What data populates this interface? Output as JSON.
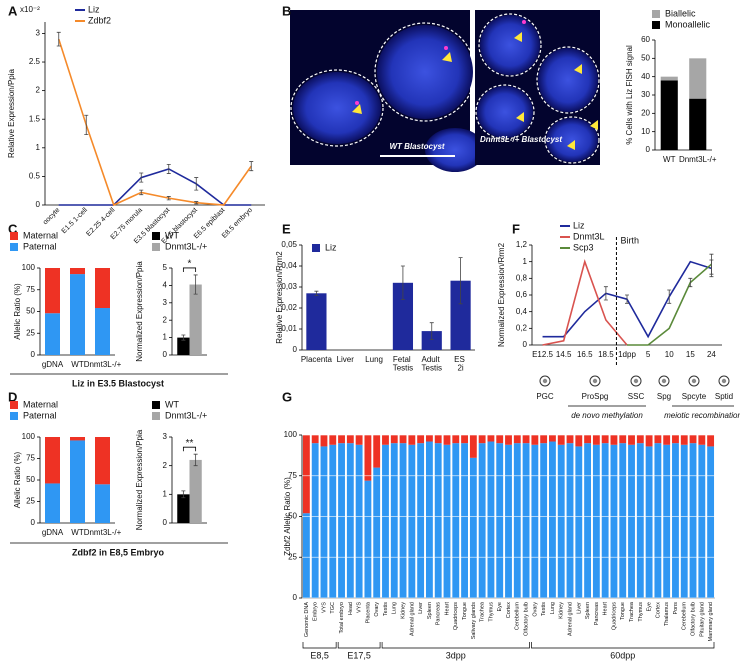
{
  "chart_data": [
    {
      "panel": "A",
      "type": "line",
      "y_label": "Relative Expression/Ppia",
      "y_multiplier": "x10⁻²",
      "categories": [
        "oocyte",
        "E1.5 1-cell",
        "E2.25 4-cell",
        "E2.75 morula",
        "E3.5 blastocyst",
        "E4.5 blastocyst",
        "E6.5 epiblast",
        "E8.5 embryo"
      ],
      "series": [
        {
          "name": "Liz",
          "color": "#1f2a9c",
          "values": [
            0,
            0,
            0,
            0.0048,
            0.0063,
            0.0037,
            0,
            0
          ],
          "errors": [
            null,
            null,
            null,
            0.0008,
            0.0008,
            0.0011,
            null,
            null
          ]
        },
        {
          "name": "Zdbf2",
          "color": "#f58a2a",
          "values": [
            0.029,
            0.014,
            0,
            0.0022,
            0.0012,
            0.0004,
            0,
            0.0068
          ],
          "errors": [
            0.0012,
            0.0017,
            null,
            0.0004,
            0.0003,
            0.0002,
            null,
            0.0008
          ]
        }
      ],
      "ylim": [
        0,
        0.032
      ],
      "yticks": [
        0,
        {
          "value": 0.005,
          "label": "0.5"
        },
        {
          "value": 0.01,
          "label": "1"
        },
        {
          "value": 0.015,
          "label": "1.5"
        },
        {
          "value": 0.02,
          "label": "2"
        },
        {
          "value": 0.025,
          "label": "2.5"
        },
        {
          "value": 0.03,
          "label": "3"
        }
      ]
    },
    {
      "panel": "B",
      "type": "stacked_bar",
      "image_captions": [
        "WT Blastocyst",
        "Dnmt3L-/+ Blastocyst"
      ],
      "y_label": "% Cells with Liz FISH signal",
      "categories": [
        "WT",
        "Dnmt3L-/+"
      ],
      "series": [
        {
          "name": "Biallelic",
          "color": "#a6a6a6",
          "values": [
            2,
            22
          ]
        },
        {
          "name": "Monoallelic",
          "color": "#000000",
          "values": [
            38,
            28
          ]
        }
      ],
      "ylim": [
        0,
        60
      ],
      "yticks": [
        0,
        10,
        20,
        30,
        40,
        50,
        60
      ]
    },
    {
      "panel": "C",
      "type": "stacked_bar",
      "y_label": "Allelic Ratio (%)",
      "caption": "Liz in E3.5 Blastocyst",
      "categories": [
        "gDNA",
        "WT",
        "Dnmt3L-/+"
      ],
      "series": [
        {
          "name": "Maternal",
          "color": "#ee3224",
          "values": [
            52,
            7,
            46
          ]
        },
        {
          "name": "Paternal",
          "color": "#2f97f3",
          "values": [
            48,
            93,
            54
          ]
        }
      ],
      "ylim": [
        0,
        100
      ],
      "yticks": [
        0,
        25,
        50,
        75,
        100
      ]
    },
    {
      "type": "bar",
      "y_label": "Normalized Expression/Ppia",
      "annotation": "*",
      "series": [
        {
          "name": "WT",
          "color": "#000000",
          "values": [
            1
          ],
          "errors": [
            0.15
          ]
        },
        {
          "name": "Dnmt3L-/+",
          "color": "#a6a6a6",
          "values": [
            4.05
          ],
          "errors": [
            0.55
          ]
        }
      ],
      "ylim": [
        0,
        5
      ],
      "yticks": [
        0,
        1,
        2,
        3,
        4,
        5
      ]
    },
    {
      "panel": "D",
      "type": "stacked_bar",
      "y_label": "Allelic Ratio (%)",
      "caption": "Zdbf2 in E8,5 Embryo",
      "categories": [
        "gDNA",
        "WT",
        "Dnmt3L-/+"
      ],
      "series": [
        {
          "name": "Maternal",
          "color": "#ee3224",
          "values": [
            54,
            4,
            55
          ]
        },
        {
          "name": "Paternal",
          "color": "#2f97f3",
          "values": [
            46,
            96,
            45
          ]
        }
      ],
      "ylim": [
        0,
        100
      ],
      "yticks": [
        0,
        25,
        50,
        75,
        100
      ]
    },
    {
      "type": "bar",
      "y_label": "Normalized Expression/Ppia",
      "annotation": "**",
      "series": [
        {
          "name": "WT",
          "color": "#000000",
          "values": [
            1
          ],
          "errors": [
            0.12
          ]
        },
        {
          "name": "Dnmt3L-/+",
          "color": "#a6a6a6",
          "values": [
            2.2
          ],
          "errors": [
            0.2
          ]
        }
      ],
      "ylim": [
        0,
        3
      ],
      "yticks": [
        0,
        1,
        2,
        3
      ]
    },
    {
      "panel": "E",
      "type": "bar",
      "y_label": "Relative Expression/Rrm2",
      "categories": [
        "Placenta",
        "Liver",
        "Lung",
        "Fetal Testis",
        "Adult Testis",
        "ES 2i"
      ],
      "series": [
        {
          "name": "Liz",
          "color": "#1f2a9c",
          "values": [
            0.027,
            0,
            0,
            0.032,
            0.009,
            0.033
          ],
          "errors": [
            0.001,
            null,
            null,
            0.008,
            0.004,
            0.011
          ]
        }
      ],
      "ylim": [
        0,
        0.05
      ],
      "yticks": [
        0,
        {
          "value": 0.01,
          "label": "0,01"
        },
        {
          "value": 0.02,
          "label": "0,02"
        },
        {
          "value": 0.03,
          "label": "0,03"
        },
        {
          "value": 0.04,
          "label": "0,04"
        },
        {
          "value": 0.05,
          "label": "0,05"
        }
      ]
    },
    {
      "panel": "F",
      "type": "line",
      "y_label": "Normalized Expression/Rrm2",
      "annotation": "Birth",
      "categories": [
        "E12.5",
        "14.5",
        "16.5",
        "18.5",
        "1dpp",
        "5",
        "10",
        "15",
        "24"
      ],
      "series": [
        {
          "name": "Liz",
          "color": "#1f2a9c",
          "values": [
            0.1,
            0.1,
            0.4,
            0.62,
            0.55,
            0.1,
            0.58,
            1.0,
            0.92
          ],
          "errors": [
            null,
            null,
            null,
            0.08,
            0.05,
            null,
            0.08,
            null,
            0.1
          ]
        },
        {
          "name": "Dnmt3L",
          "color": "#d9534f",
          "values": [
            0,
            0.05,
            1.0,
            0.3,
            0,
            null,
            null,
            null,
            null
          ]
        },
        {
          "name": "Scp3",
          "color": "#5a8a3a",
          "values": [
            null,
            null,
            null,
            null,
            0,
            0,
            0.2,
            0.75,
            0.97
          ],
          "errors": [
            null,
            null,
            null,
            null,
            null,
            null,
            null,
            0.05,
            0.12
          ]
        }
      ],
      "ylim": [
        0,
        1.2
      ],
      "yticks": [
        0,
        {
          "value": 0.2,
          "label": "0,2"
        },
        {
          "value": 0.4,
          "label": "0,4"
        },
        {
          "value": 0.6,
          "label": "0,6"
        },
        {
          "value": 0.8,
          "label": "0,8"
        },
        1,
        {
          "value": 1.2,
          "label": "1,2"
        }
      ],
      "stages": [
        "PGC",
        "ProSpg",
        "SSC",
        "Spg",
        "Spcyte",
        "Sptid"
      ],
      "stage_notes": [
        "de novo methylation",
        "meiotic recombination"
      ]
    },
    {
      "panel": "G",
      "type": "stacked_bar",
      "y_label": "Zdbf2 Allelic Ratio (%)",
      "grid": true,
      "groups": [
        {
          "label": "E8,5",
          "categories": [
            "Genomic DNA",
            "Embryo",
            "VYS",
            "TGC"
          ]
        },
        {
          "label": "E17,5",
          "categories": [
            "Total embryo",
            "Head",
            "VYS",
            "Placenta",
            "Ovary"
          ]
        },
        {
          "label": "3dpp",
          "categories": [
            "Testis",
            "Lung",
            "Kidney",
            "Adrenal gland",
            "Liver",
            "Spleen",
            "Pancreas",
            "Heart",
            "Quadriceps",
            "Tongue",
            "Salivary glands",
            "Trachea",
            "Thymus",
            "Eye",
            "Cortex",
            "Cerebellum",
            "Olfactory bulb"
          ]
        },
        {
          "label": "60dpp",
          "categories": [
            "Ovary",
            "Testis",
            "Lung",
            "Kidney",
            "Adrenal gland",
            "Liver",
            "Spleen",
            "Pancreas",
            "Heart",
            "Quadriceps",
            "Tongue",
            "Trachea",
            "Thymus",
            "Eye",
            "Cortex",
            "Thalamus",
            "Pons",
            "Cerebellum",
            "Olfactory bulb",
            "Pituitary gland",
            "Mammary gland"
          ]
        }
      ],
      "series": [
        {
          "color": "#ee3224",
          "values": [
            48,
            5,
            7,
            6,
            5,
            5,
            6,
            28,
            20,
            6,
            5,
            5,
            6,
            5,
            4,
            5,
            6,
            5,
            5,
            14,
            5,
            4,
            5,
            6,
            5,
            5,
            6,
            5,
            4,
            6,
            5,
            7,
            5,
            6,
            5,
            6,
            5,
            6,
            5,
            7,
            5,
            6,
            5,
            6,
            5,
            6,
            7
          ]
        },
        {
          "color": "#2f97f3",
          "values": [
            52,
            95,
            93,
            94,
            95,
            95,
            94,
            72,
            80,
            94,
            95,
            95,
            94,
            95,
            96,
            95,
            94,
            95,
            95,
            86,
            95,
            96,
            95,
            94,
            95,
            95,
            94,
            95,
            96,
            94,
            95,
            93,
            95,
            94,
            95,
            94,
            95,
            94,
            95,
            93,
            95,
            94,
            95,
            94,
            95,
            94,
            93
          ]
        }
      ],
      "ylim": [
        0,
        100
      ],
      "yticks": [
        0,
        25,
        50,
        75,
        100
      ]
    }
  ]
}
